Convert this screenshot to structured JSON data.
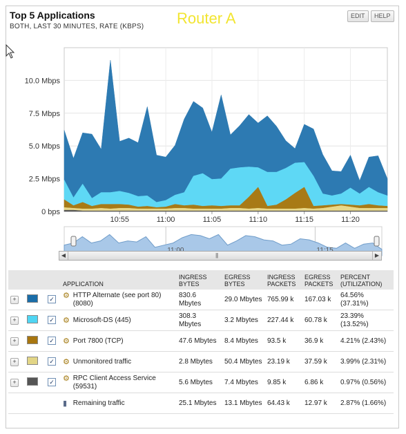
{
  "header": {
    "title": "Top 5 Applications",
    "subtitle": "BOTH, LAST 30 MINUTES, RATE (KBPS)",
    "router_label": "Router A",
    "edit_label": "EDIT",
    "help_label": "HELP"
  },
  "chart_data": {
    "type": "area",
    "stacked": true,
    "x_tick_labels": [
      "10:55",
      "11:00",
      "11:05",
      "11:10",
      "11:15",
      "11:20"
    ],
    "y_tick_labels": [
      "0 bps",
      "2.5 Mbps",
      "5.0 Mbps",
      "7.5 Mbps",
      "10.0 Mbps"
    ],
    "ylim": [
      0,
      12.5
    ],
    "y_unit": "Mbps",
    "grid": true,
    "x": [
      0,
      1,
      2,
      3,
      4,
      5,
      6,
      7,
      8,
      9,
      10,
      11,
      12,
      13,
      14,
      15,
      16,
      17,
      18,
      19,
      20,
      21,
      22,
      23,
      24,
      25,
      26,
      27,
      28,
      29,
      30,
      31,
      32,
      33,
      34,
      35
    ],
    "x_tick_positions": [
      6,
      11,
      16,
      21,
      26,
      31
    ],
    "series": [
      {
        "name": "RPC Client Access Service (59531)",
        "color": "#555555",
        "values": [
          0.1,
          0.1,
          0.05,
          0.05,
          0.05,
          0.05,
          0.05,
          0.05,
          0.05,
          0.05,
          0.05,
          0.05,
          0.05,
          0.05,
          0.05,
          0.05,
          0.05,
          0.05,
          0.05,
          0.05,
          0.05,
          0.05,
          0.05,
          0.05,
          0.05,
          0.05,
          0.05,
          0.05,
          0.05,
          0.05,
          0.05,
          0.05,
          0.05,
          0.05,
          0.05,
          0.05
        ]
      },
      {
        "name": "Unmonitored traffic",
        "color": "#e8d88a",
        "values": [
          0.2,
          0.15,
          0.15,
          0.15,
          0.2,
          0.15,
          0.2,
          0.2,
          0.15,
          0.15,
          0.15,
          0.15,
          0.2,
          0.2,
          0.15,
          0.15,
          0.15,
          0.15,
          0.2,
          0.2,
          0.15,
          0.2,
          0.15,
          0.15,
          0.15,
          0.15,
          0.2,
          0.15,
          0.2,
          0.3,
          0.4,
          0.3,
          0.2,
          0.2,
          0.2,
          0.2
        ]
      },
      {
        "name": "Port 7800 (TCP)",
        "color": "#a87a16",
        "values": [
          0.6,
          0.2,
          0.5,
          0.2,
          0.3,
          0.35,
          0.3,
          0.25,
          0.15,
          0.2,
          0.1,
          0.15,
          0.3,
          0.2,
          0.3,
          0.2,
          0.25,
          0.2,
          0.2,
          0.2,
          0.9,
          1.6,
          0.2,
          0.3,
          0.7,
          1.2,
          1.6,
          0.2,
          0.2,
          0.15,
          0.1,
          0.15,
          0.2,
          0.3,
          0.2,
          0.15
        ]
      },
      {
        "name": "Microsoft-DS (445)",
        "color": "#5ed8f5",
        "values": [
          1.5,
          0.6,
          1.4,
          0.6,
          0.9,
          0.9,
          1.0,
          0.9,
          0.8,
          0.8,
          0.4,
          0.5,
          0.7,
          1.0,
          2.2,
          2.5,
          2.0,
          2.1,
          2.8,
          2.9,
          2.3,
          1.5,
          2.6,
          2.5,
          2.4,
          2.3,
          1.9,
          2.3,
          0.9,
          0.7,
          0.8,
          1.3,
          0.9,
          1.3,
          1.0,
          0.8
        ]
      },
      {
        "name": "HTTP Alternate (see port 80) (8080)",
        "color": "#2d7ab2",
        "values": [
          3.8,
          3.0,
          3.9,
          4.9,
          3.3,
          10.1,
          3.8,
          4.2,
          4.1,
          6.8,
          3.6,
          3.3,
          3.8,
          5.6,
          5.7,
          5.0,
          3.6,
          6.4,
          2.6,
          3.2,
          4.0,
          3.4,
          4.3,
          3.5,
          2.1,
          1.1,
          2.9,
          3.6,
          3.0,
          1.9,
          1.7,
          2.5,
          1.0,
          2.3,
          2.8,
          1.3
        ]
      }
    ],
    "navigator_tick_labels": [
      "11:00",
      "11:15"
    ],
    "navigator_values": [
      0.5,
      0.6,
      0.9,
      0.6,
      0.7,
      1.0,
      0.6,
      0.7,
      0.65,
      0.9,
      0.4,
      0.5,
      0.6,
      0.85,
      1.0,
      0.95,
      0.8,
      1.0,
      0.5,
      0.7,
      0.95,
      0.9,
      0.75,
      0.7,
      0.5,
      0.55,
      0.8,
      0.75,
      0.6,
      0.4,
      0.35,
      0.6,
      0.35,
      0.55,
      0.6,
      0.3
    ]
  },
  "table": {
    "headers": {
      "application": "APPLICATION",
      "ingress_bytes": [
        "INGRESS",
        "BYTES"
      ],
      "egress_bytes": [
        "EGRESS",
        "BYTES"
      ],
      "ingress_packets": [
        "INGRESS",
        "PACKETS"
      ],
      "egress_packets": [
        "EGRESS",
        "PACKETS"
      ],
      "percent": [
        "PERCENT",
        "(UTILIZATION)"
      ]
    },
    "rows": [
      {
        "name": "HTTP Alternate (see port 80) (8080)",
        "color": "#1a6da8",
        "ingress_bytes": "830.6 Mbytes",
        "egress_bytes": "29.0 Mbytes",
        "ingress_packets": "765.99 k",
        "egress_packets": "167.03 k",
        "percent": "64.56% (37.31%)",
        "expandable": true,
        "checked": true
      },
      {
        "name": "Microsoft-DS (445)",
        "color": "#4fd5f3",
        "ingress_bytes": "308.3 Mbytes",
        "egress_bytes": "3.2 Mbytes",
        "ingress_packets": "227.44 k",
        "egress_packets": "60.78 k",
        "percent": "23.39% (13.52%)",
        "expandable": true,
        "checked": true
      },
      {
        "name": "Port 7800 (TCP)",
        "color": "#a8760f",
        "ingress_bytes": "47.6 Mbytes",
        "egress_bytes": "8.4 Mbytes",
        "ingress_packets": "93.5 k",
        "egress_packets": "36.9 k",
        "percent": "4.21% (2.43%)",
        "expandable": true,
        "checked": true
      },
      {
        "name": "Unmonitored traffic",
        "color": "#e2d586",
        "ingress_bytes": "2.8 Mbytes",
        "egress_bytes": "50.4 Mbytes",
        "ingress_packets": "23.19 k",
        "egress_packets": "37.59 k",
        "percent": "3.99% (2.31%)",
        "expandable": true,
        "checked": true
      },
      {
        "name": "RPC Client Access Service (59531)",
        "color": "#555555",
        "ingress_bytes": "5.6 Mbytes",
        "egress_bytes": "7.4 Mbytes",
        "ingress_packets": "9.85 k",
        "egress_packets": "6.86 k",
        "percent": "0.97% (0.56%)",
        "expandable": true,
        "checked": true
      },
      {
        "name": "Remaining traffic",
        "color": "",
        "ingress_bytes": "25.1 Mbytes",
        "egress_bytes": "13.1 Mbytes",
        "ingress_packets": "64.43 k",
        "egress_packets": "12.97 k",
        "percent": "2.87% (1.66%)",
        "expandable": false,
        "checked": false
      }
    ]
  }
}
